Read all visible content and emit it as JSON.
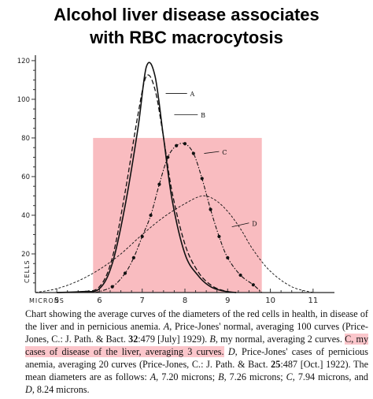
{
  "title_line1": "Alcohol liver disease associates",
  "title_line2": "with RBC macrocytosis",
  "chart_data": {
    "type": "line",
    "ylabel": "CELLS",
    "xlabel": "MICRONS",
    "x_ticks": [
      5,
      6,
      7,
      8,
      9,
      10,
      11
    ],
    "y_ticks": [
      20,
      40,
      60,
      80,
      100,
      120
    ],
    "xlim": [
      4.5,
      11.5
    ],
    "ylim": [
      0,
      122
    ],
    "highlight": {
      "x": [
        5.85,
        9.8
      ],
      "y": [
        0,
        80
      ],
      "color": "#f7a5ab"
    },
    "series": [
      {
        "name": "A",
        "style": "solid",
        "x": [
          5.0,
          5.6,
          6.0,
          6.3,
          6.6,
          6.9,
          7.1,
          7.3,
          7.5,
          7.7,
          8.0,
          8.3,
          8.6,
          8.9,
          9.2
        ],
        "y": [
          0,
          0.5,
          2,
          15,
          45,
          85,
          117,
          112,
          80,
          48,
          20,
          9,
          3,
          0.8,
          0
        ]
      },
      {
        "name": "B",
        "style": "dash",
        "x": [
          5.0,
          5.6,
          6.0,
          6.3,
          6.6,
          6.9,
          7.1,
          7.3,
          7.5,
          7.7,
          8.0,
          8.3,
          8.6,
          8.9,
          9.2
        ],
        "y": [
          0,
          0.5,
          3,
          18,
          52,
          92,
          112,
          105,
          80,
          52,
          25,
          11,
          4,
          1,
          0
        ]
      },
      {
        "name": "C",
        "style": "dash-dot",
        "x": [
          5.9,
          6.3,
          6.6,
          6.8,
          7.0,
          7.2,
          7.4,
          7.6,
          7.8,
          8.0,
          8.2,
          8.4,
          8.6,
          8.8,
          9.0,
          9.3,
          9.6,
          9.8
        ],
        "y": [
          0,
          3,
          10,
          18,
          29,
          40,
          56,
          70,
          76,
          77,
          72,
          59,
          43,
          29,
          18,
          9,
          4,
          0
        ]
      },
      {
        "name": "D",
        "style": "dash-long",
        "x": [
          4.5,
          5.0,
          5.5,
          6.0,
          6.5,
          7.0,
          7.5,
          8.0,
          8.4,
          8.7,
          9.0,
          9.3,
          9.6,
          10.0,
          10.5,
          11.0
        ],
        "y": [
          0,
          2,
          6,
          12,
          20,
          30,
          39,
          46,
          50,
          48,
          42,
          33,
          22,
          11,
          3,
          0
        ]
      }
    ]
  },
  "caption": {
    "part1": "Chart showing the average curves of the diameters of the red cells in health, in disease of the liver and in pernicious anemia.",
    "a_letter": "A",
    "part2": ", Price-Jones' normal, averaging 100 curves (Price-Jones, C.: J. Path. & Bact.",
    "ref1_vol": "32",
    "part3": ":479 [July] 1929).",
    "b_letter": "B",
    "part4": ", my normal, averaging 2 curves.",
    "c_highlight": "C, my cases of disease of the liver, averaging 3 curves.",
    "d_letter": "D",
    "part5": ", Price-Jones' cases of pernicious anemia, averaging 20 curves (Price-Jones, C.: J. Path. & Bact.",
    "ref2_vol": "25",
    "part6": ":487 [Oct.] 1922). The mean diameters are as follows:",
    "mean_a_letter": "A",
    "mean_a": ", 7.20 microns;",
    "mean_b_letter": "B",
    "mean_b": ", 7.26 microns;",
    "mean_c_letter": "C",
    "mean_c": ", 7.94 microns, and",
    "mean_d_letter": "D",
    "mean_d": ", 8.24 microns."
  }
}
